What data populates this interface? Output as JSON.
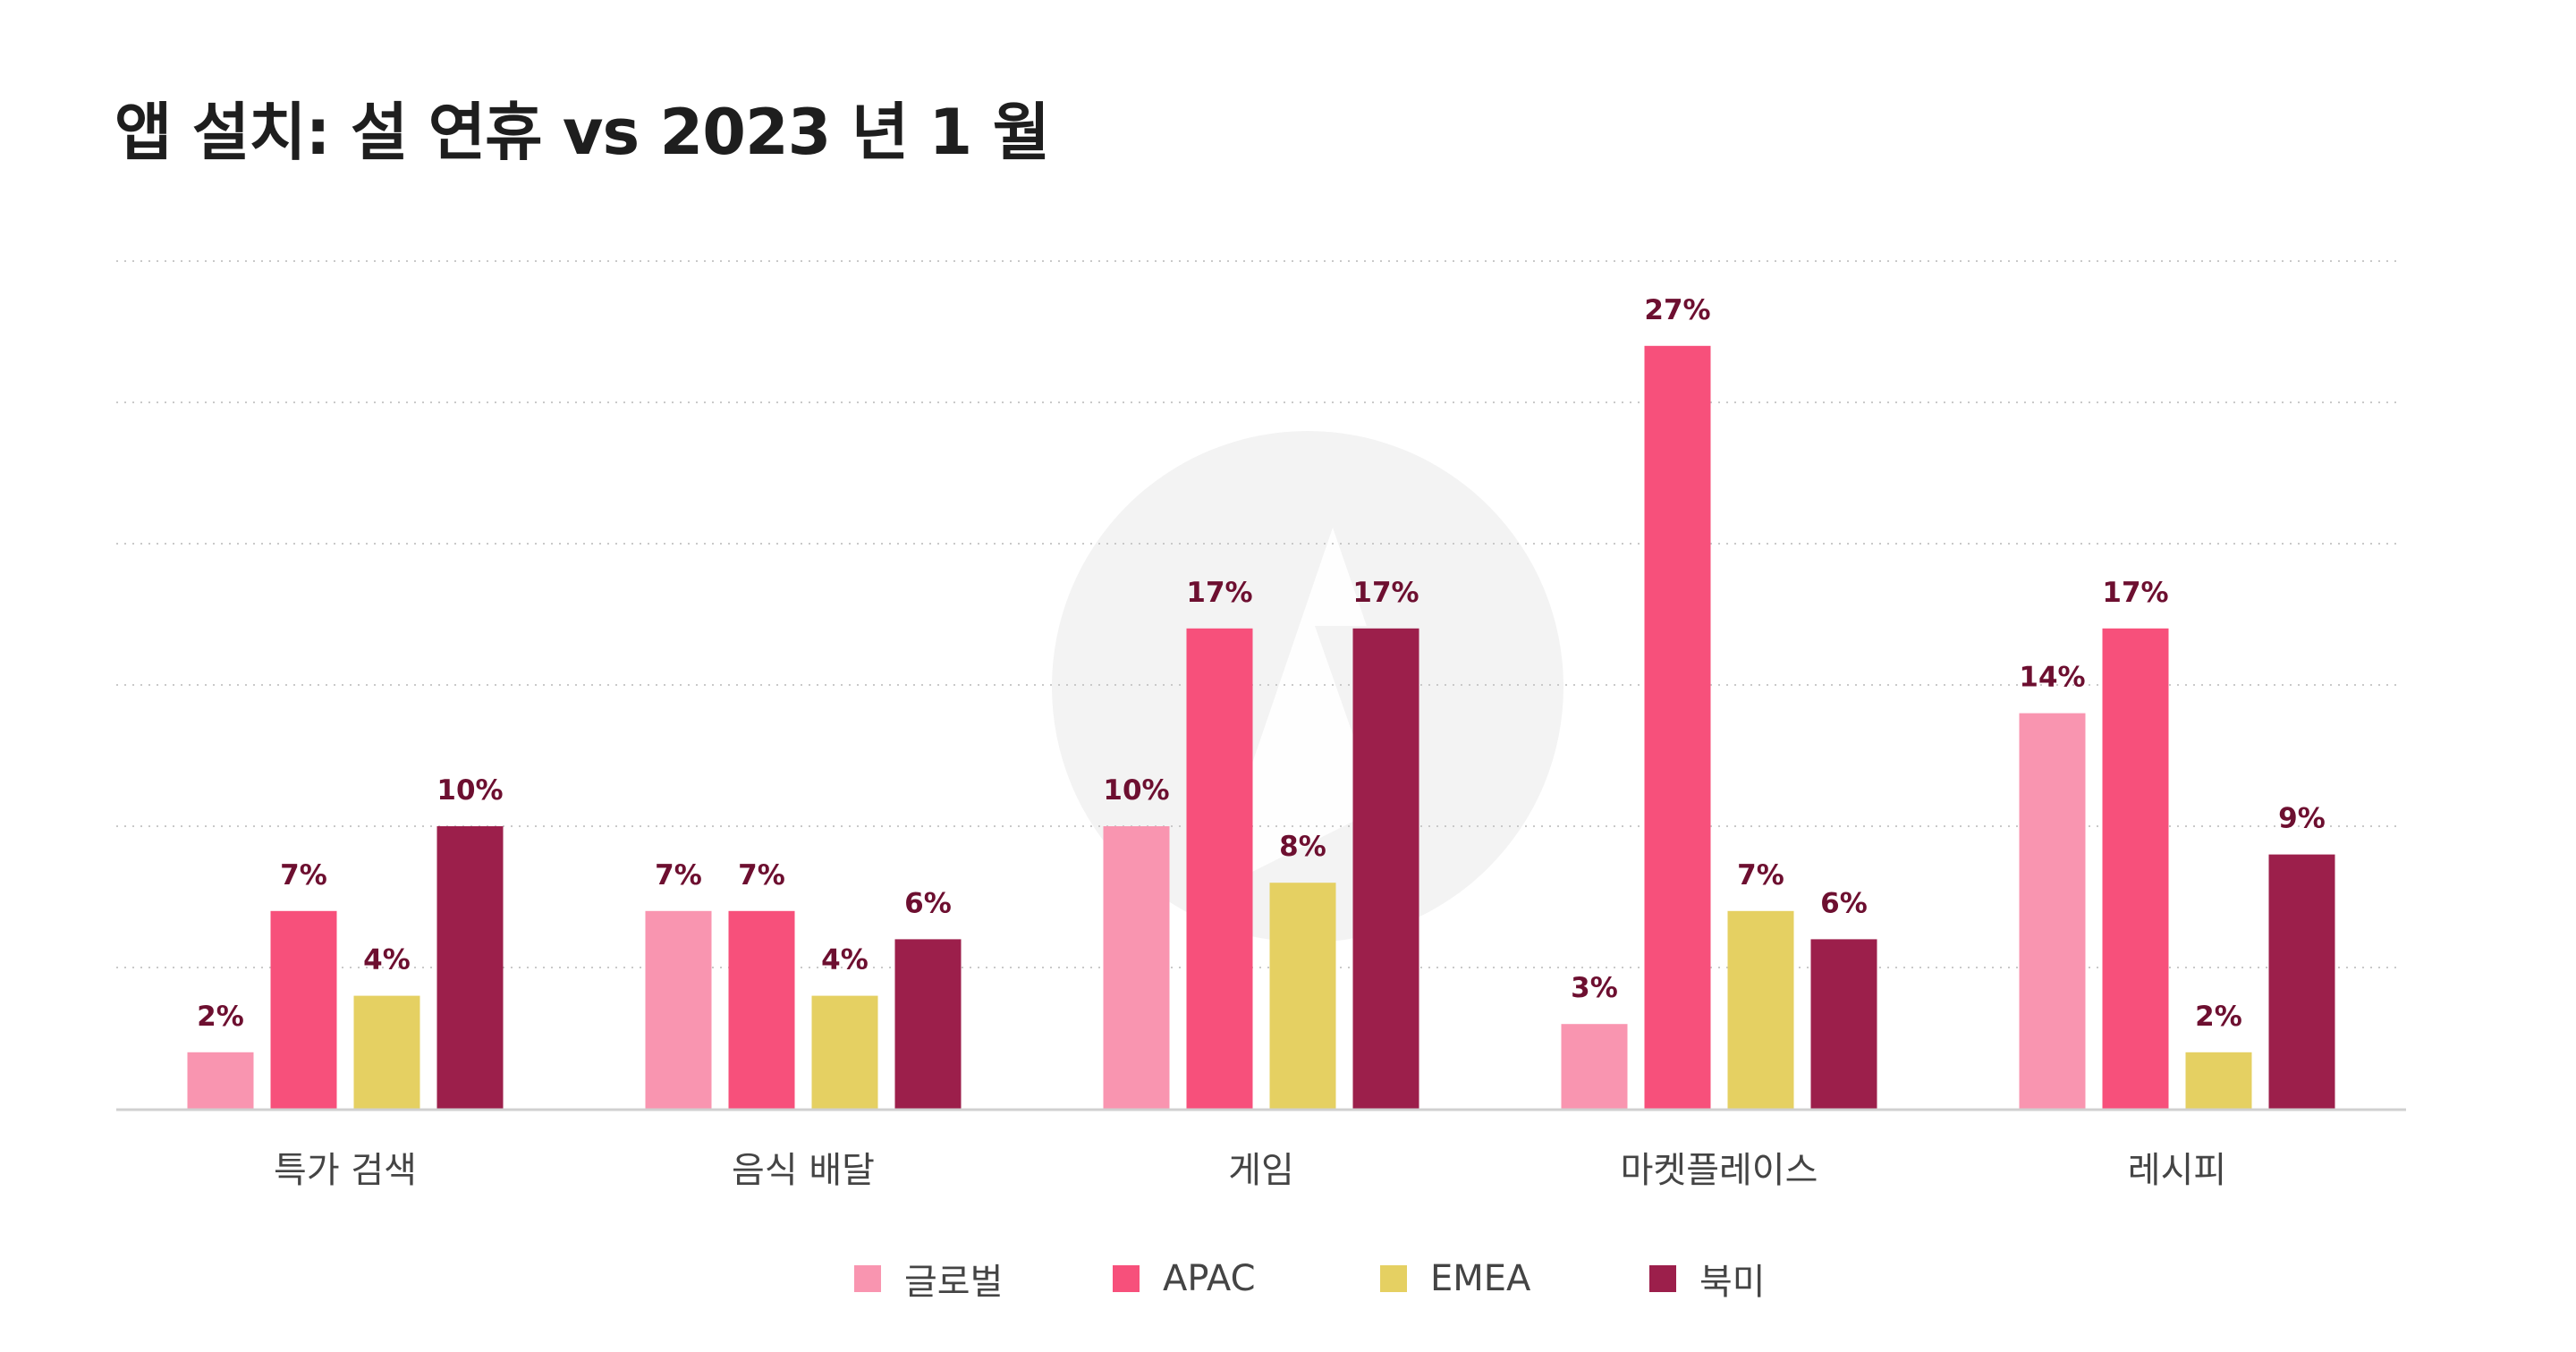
{
  "title": "앱 설치: 설 연휴 vs 2023 년 1 월",
  "colors": {
    "global": "#f995b0",
    "apac": "#f7507b",
    "emea": "#e5d062",
    "north_america": "#9c1f4b",
    "value_label": "#6d0f30",
    "grid": "#c9c9c9",
    "axis": "#d0d0d0",
    "watermark": "#f3f3f3"
  },
  "watermark_icon": "appsflyer-logo-icon",
  "chart_data": {
    "type": "bar",
    "title": "앱 설치: 설 연휴 vs 2023 년 1 월",
    "xlabel": "",
    "ylabel": "",
    "ylim": [
      0,
      30
    ],
    "grid": true,
    "legend_position": "bottom",
    "value_suffix": "%",
    "categories": [
      "특가 검색",
      "음식 배달",
      "게임",
      "마켓플레이스",
      "레시피"
    ],
    "series": [
      {
        "name": "글로벌",
        "values": [
          2,
          7,
          10,
          3,
          14
        ]
      },
      {
        "name": "APAC",
        "values": [
          7,
          7,
          17,
          27,
          17
        ]
      },
      {
        "name": "EMEA",
        "values": [
          4,
          4,
          8,
          7,
          2
        ]
      },
      {
        "name": "북미",
        "values": [
          10,
          6,
          17,
          6,
          9
        ]
      }
    ]
  }
}
